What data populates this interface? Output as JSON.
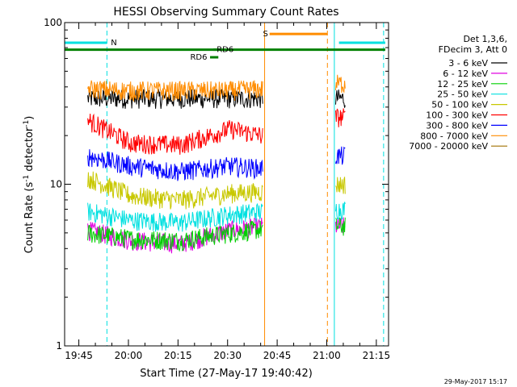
{
  "chart_data": {
    "type": "line",
    "title": "HESSI Observing Summary Count Rates",
    "xlabel": "Start Time (27-May-17 19:40:42)",
    "ylabel_main": "Count Rate (s",
    "ylabel_sup1": "-1",
    "ylabel_mid": " detector",
    "ylabel_sup2": "-1",
    "ylabel_end": ")",
    "x_ticks": [
      "19:45",
      "20:00",
      "20:15",
      "20:30",
      "20:45",
      "21:00",
      "21:15"
    ],
    "x_tick_minutes": [
      4.3,
      19.3,
      34.3,
      49.3,
      64.3,
      79.3,
      94.3
    ],
    "xlim_minutes": [
      0,
      98
    ],
    "y_scale": "log",
    "ylim": [
      1,
      100
    ],
    "y_ticks": [
      "1",
      "10",
      "100"
    ],
    "legend_header": [
      "Det 1,3,6,",
      "FDecim 3, Att 0"
    ],
    "legend_placement": "right",
    "series": [
      {
        "name": "3 - 6 keV",
        "color": "#000000",
        "seg1": [
          [
            7,
            34
          ],
          [
            20,
            34
          ],
          [
            35,
            34
          ],
          [
            50,
            34
          ],
          [
            60,
            34
          ]
        ],
        "seg2": [
          [
            82,
            34
          ],
          [
            85,
            34
          ]
        ]
      },
      {
        "name": "6 - 12 keV",
        "color": "#e000e0",
        "seg1": [
          [
            7,
            5.2
          ],
          [
            20,
            4.5
          ],
          [
            35,
            4.3
          ],
          [
            50,
            5.2
          ],
          [
            60,
            5.5
          ]
        ],
        "seg2": [
          [
            82,
            5.5
          ],
          [
            85,
            5.5
          ]
        ]
      },
      {
        "name": "12 - 25 keV",
        "color": "#00d000",
        "seg1": [
          [
            7,
            5.0
          ],
          [
            20,
            4.6
          ],
          [
            35,
            4.5
          ],
          [
            50,
            5.0
          ],
          [
            60,
            5.3
          ]
        ],
        "seg2": [
          [
            82,
            5.5
          ],
          [
            85,
            5.5
          ]
        ]
      },
      {
        "name": "25 - 50 keV",
        "color": "#00e0e0",
        "seg1": [
          [
            7,
            6.8
          ],
          [
            20,
            6.0
          ],
          [
            35,
            5.8
          ],
          [
            50,
            6.5
          ],
          [
            60,
            6.8
          ]
        ],
        "seg2": [
          [
            82,
            7
          ],
          [
            85,
            7
          ]
        ]
      },
      {
        "name": "50 - 100 keV",
        "color": "#c8c800",
        "seg1": [
          [
            7,
            11
          ],
          [
            20,
            8.5
          ],
          [
            35,
            8.0
          ],
          [
            50,
            8.8
          ],
          [
            60,
            9.0
          ]
        ],
        "seg2": [
          [
            82,
            10
          ],
          [
            85,
            10
          ]
        ]
      },
      {
        "name": "100 - 300 keV",
        "color": "#ff0000",
        "seg1": [
          [
            7,
            25
          ],
          [
            20,
            18
          ],
          [
            35,
            17.5
          ],
          [
            50,
            22
          ],
          [
            60,
            20
          ]
        ],
        "seg2": [
          [
            82,
            26
          ],
          [
            85,
            26
          ]
        ]
      },
      {
        "name": "300 - 800 keV",
        "color": "#0000ff",
        "seg1": [
          [
            7,
            15
          ],
          [
            20,
            13
          ],
          [
            35,
            12
          ],
          [
            50,
            13
          ],
          [
            60,
            12.5
          ]
        ],
        "seg2": [
          [
            82,
            15
          ],
          [
            85,
            15
          ]
        ]
      },
      {
        "name": "800 - 7000 keV",
        "color": "#ff8c00",
        "seg1": [
          [
            7,
            39
          ],
          [
            20,
            38
          ],
          [
            35,
            38
          ],
          [
            50,
            38
          ],
          [
            60,
            39
          ]
        ],
        "seg2": [
          [
            82,
            42
          ],
          [
            85,
            42
          ]
        ]
      },
      {
        "name": "7000 - 20000 keV",
        "color": "#a07000",
        "seg1": [],
        "seg2": []
      }
    ],
    "flag_bars": [
      {
        "label": "N",
        "color": "#00e0e0",
        "y": 75,
        "x": [
          0,
          12.8
        ],
        "label_at": 14
      },
      {
        "label": "",
        "color": "#00e0e0",
        "y": 75,
        "x": [
          83,
          97
        ],
        "label_at": null
      },
      {
        "label": "S",
        "color": "#ff8c00",
        "y": 85,
        "x": [
          62,
          79.5
        ],
        "label_at": 60
      },
      {
        "label": "",
        "color": "#008000",
        "y": 68,
        "x": [
          0,
          97
        ],
        "label_at": null
      },
      {
        "label": "RD6",
        "color": "#008000",
        "y": 68,
        "x": [
          45,
          47
        ],
        "label_at": 46
      },
      {
        "label": "RD6",
        "color": "#008000",
        "y": 61,
        "x": [
          44,
          46.5
        ],
        "label_at": 38
      }
    ],
    "vlines": [
      {
        "x": 12.8,
        "color": "#00e0e0",
        "style": "dashed"
      },
      {
        "x": 60.5,
        "color": "#ff8c00",
        "style": "solid"
      },
      {
        "x": 79.5,
        "color": "#ff8c00",
        "style": "dashed"
      },
      {
        "x": 81.6,
        "color": "#00e0e0",
        "style": "solid"
      },
      {
        "x": 96.5,
        "color": "#00e0e0",
        "style": "dashed"
      }
    ],
    "footer": "29-May-2017 15:17"
  }
}
